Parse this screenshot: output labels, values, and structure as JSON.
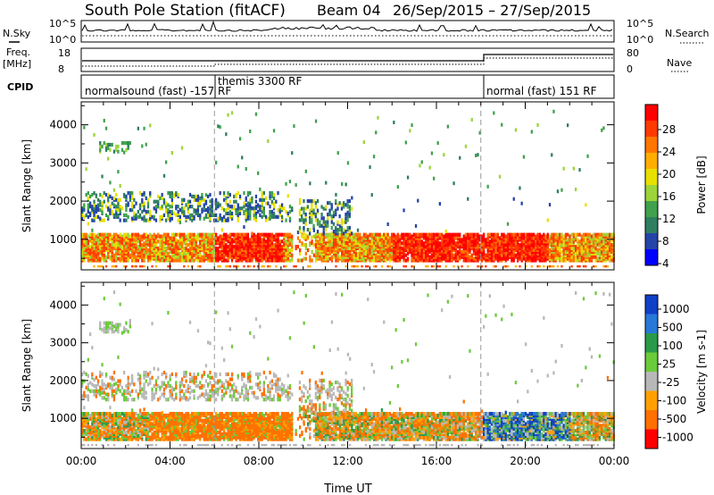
{
  "header": {
    "station": "South Pole Station (fitACF)",
    "beam": "Beam 04",
    "dates": "26/Sep/2015 – 27/Sep/2015"
  },
  "strip": {
    "nsky_label": "N.Sky",
    "nsearch_label": "N.Search",
    "left_ticks_top": [
      "10^5",
      "10^0"
    ],
    "right_ticks_top": [
      "10^5",
      "10^0"
    ],
    "freq_label_1": "Freq.",
    "freq_label_2": "[MHz]",
    "freq_ticks": [
      "18",
      "8"
    ],
    "nave_ticks": [
      "80",
      "0"
    ],
    "nave_label": "Nave",
    "cpid_label": "CPID",
    "cpid_segments": [
      {
        "label": "normalsound (fast) -157 RF",
        "start_hour": 0
      },
      {
        "label": "themis 3300 RF",
        "start_hour": 6
      },
      {
        "label": "normal (fast) 151 RF",
        "start_hour": 18
      }
    ]
  },
  "chart_data": [
    {
      "type": "heatmap",
      "name": "power",
      "ylabel": "Slant Range [km]",
      "xlim_hours": [
        0,
        24
      ],
      "ylim_km": [
        200,
        4600
      ],
      "yticks": [
        "1000",
        "2000",
        "3000",
        "4000"
      ],
      "colorbar": {
        "label": "Power [dB]",
        "ticks": [
          "28",
          "24",
          "20",
          "16",
          "12",
          "8",
          "4"
        ],
        "colors": [
          "#ff0000",
          "#ff3a00",
          "#ff7700",
          "#ffae00",
          "#e8e000",
          "#9cd43a",
          "#3fa14c",
          "#2f7e60",
          "#2544a8",
          "#0000ff"
        ]
      }
    },
    {
      "type": "heatmap",
      "name": "velocity",
      "ylabel": "Slant Range [km]",
      "xlabel": "Time UT",
      "xlim_hours": [
        0,
        24
      ],
      "ylim_km": [
        200,
        4600
      ],
      "yticks": [
        "1000",
        "2000",
        "3000",
        "4000"
      ],
      "xticks": [
        "00:00",
        "04:00",
        "08:00",
        "12:00",
        "16:00",
        "20:00",
        "00:00"
      ],
      "colorbar": {
        "label": "Velocity [m s-1]",
        "ticks": [
          "1000",
          "500",
          "100",
          "25",
          "-25",
          "-100",
          "-500",
          "-1000"
        ],
        "colors": [
          "#1040c8",
          "#2878d8",
          "#2a9a4a",
          "#6acb3a",
          "#b8b8b8",
          "#ffa000",
          "#ff7000",
          "#ff0000"
        ]
      }
    }
  ]
}
